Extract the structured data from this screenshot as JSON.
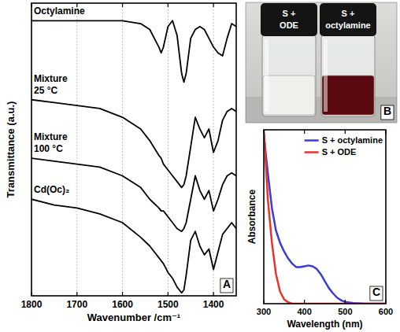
{
  "chart_data": [
    {
      "type": "line",
      "panel_label": "A",
      "x_label": "Wavenumber /cm⁻¹",
      "y_label": "Transmittance (a.u.)",
      "x": [
        1800,
        1750,
        1700,
        1650,
        1600,
        1560,
        1540,
        1520,
        1515,
        1510,
        1500,
        1490,
        1480,
        1470,
        1465,
        1460,
        1450,
        1440,
        1430,
        1420,
        1410,
        1400,
        1390,
        1380,
        1370,
        1360,
        1350
      ],
      "xlim": [
        1800,
        1350
      ],
      "xticks": [
        1800,
        1700,
        1600,
        1500,
        1400
      ],
      "ylim": [
        0,
        100
      ],
      "tick_labels": "x",
      "grid": true,
      "series": [
        {
          "name": "Octylamine",
          "color": "#000000",
          "values": [
            94,
            94,
            94,
            94,
            94,
            93,
            91,
            85,
            83,
            85,
            92,
            94,
            89,
            76,
            73,
            76,
            88,
            91,
            92,
            91,
            88,
            85,
            83,
            82,
            88,
            93,
            92
          ]
        },
        {
          "name": "Mixture 25 °C",
          "color": "#000000",
          "values": [
            67,
            66,
            65,
            64,
            61,
            57,
            53,
            48,
            47,
            45,
            43,
            41,
            39,
            37,
            38,
            41,
            51,
            61,
            57,
            54,
            57,
            49,
            53,
            60,
            63,
            64,
            63
          ]
        },
        {
          "name": "Mixture 100 °C",
          "color": "#000000",
          "values": [
            47,
            46,
            45,
            44,
            41,
            37,
            33,
            30,
            29,
            29,
            27,
            25,
            23,
            22,
            23,
            25,
            33,
            41,
            36,
            33,
            36,
            29,
            33,
            38,
            41,
            42,
            41
          ]
        },
        {
          "name": "Cd(Oc)₂",
          "color": "#000000",
          "values": [
            33,
            31,
            30,
            28,
            25,
            20,
            17,
            13,
            12,
            11,
            8,
            6,
            3,
            1,
            2,
            7,
            19,
            22,
            17,
            14,
            16,
            9,
            15,
            21,
            23,
            25,
            23
          ]
        }
      ]
    },
    {
      "type": "line",
      "panel_label": "C",
      "x_label": "Wavelength (nm)",
      "y_label": "Absorbance",
      "x": [
        300,
        305,
        310,
        320,
        330,
        340,
        350,
        360,
        370,
        380,
        390,
        400,
        410,
        420,
        430,
        440,
        450,
        460,
        470,
        480,
        490,
        500,
        520,
        550,
        600
      ],
      "xlim": [
        300,
        600
      ],
      "xticks": [
        300,
        400,
        500,
        600
      ],
      "ylim": [
        0,
        1
      ],
      "tick_labels": "x",
      "legend": "upper right",
      "series": [
        {
          "name": "S + octylamine",
          "color": "#3b3bd6",
          "values": [
            0.98,
            0.86,
            0.75,
            0.55,
            0.42,
            0.35,
            0.3,
            0.26,
            0.23,
            0.21,
            0.21,
            0.215,
            0.22,
            0.215,
            0.2,
            0.17,
            0.13,
            0.09,
            0.06,
            0.035,
            0.02,
            0.01,
            0.003,
            0,
            0
          ]
        },
        {
          "name": "S + ODE",
          "color": "#e8332a",
          "values": [
            1.0,
            0.8,
            0.6,
            0.35,
            0.17,
            0.07,
            0.025,
            0.008,
            0,
            0,
            0,
            0,
            0,
            0,
            0,
            0,
            0,
            0,
            0,
            0,
            0,
            0,
            0,
            0,
            0
          ]
        }
      ]
    }
  ],
  "photo": {
    "panel_label": "B",
    "vials": [
      "S + ODE",
      "S + octylamine"
    ]
  }
}
